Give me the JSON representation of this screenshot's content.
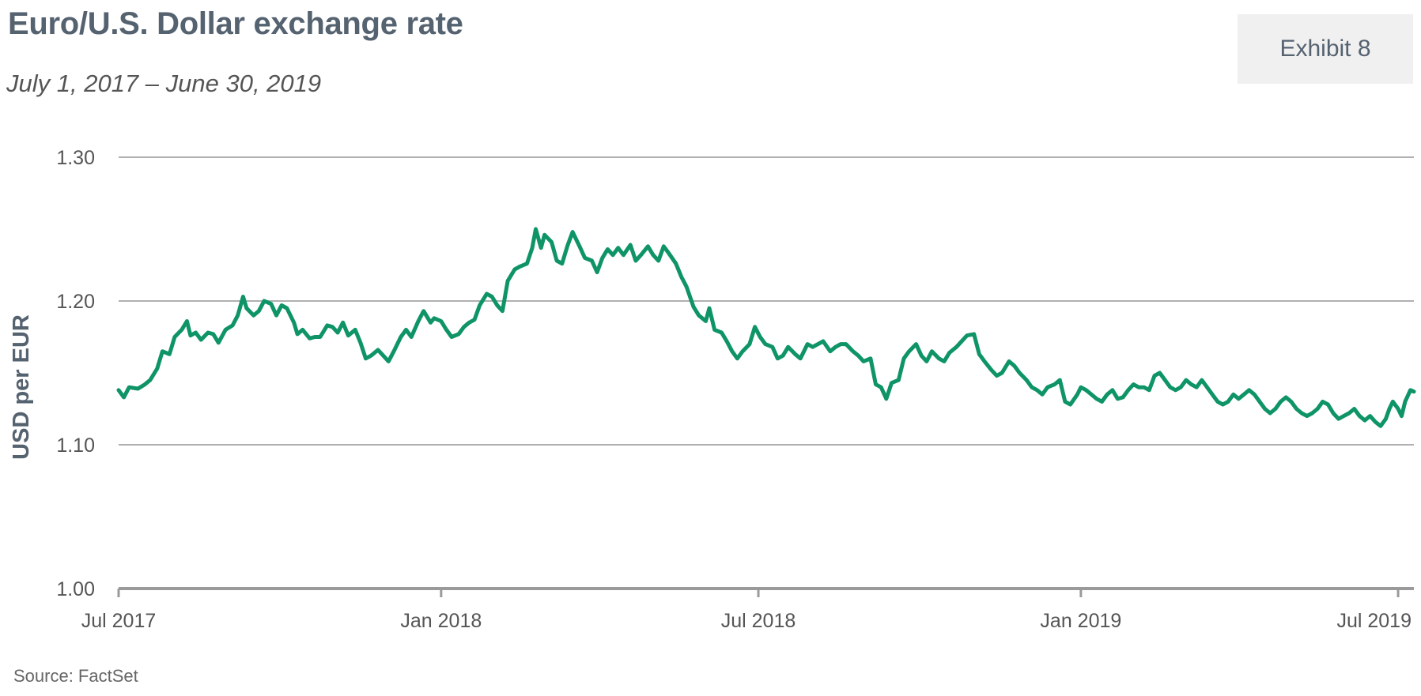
{
  "header": {
    "title": "Euro/U.S. Dollar exchange rate",
    "subtitle": "July 1, 2017 – June 30, 2019",
    "exhibit_label": "Exhibit 8"
  },
  "footer": {
    "source": "Source: FactSet"
  },
  "colors": {
    "line": "#0e9467",
    "grid": "#b0b0b0",
    "axis": "#9a9a9a",
    "title": "#556270",
    "exhibit_bg": "#f0f0f0"
  },
  "chart_data": {
    "type": "line",
    "title": "Euro/U.S. Dollar exchange rate",
    "subtitle": "July 1, 2017 – June 30, 2019",
    "xlabel": "",
    "ylabel": "USD per EUR",
    "xlim": [
      "2017-07-01",
      "2019-07-10"
    ],
    "ylim": [
      1.0,
      1.3
    ],
    "y_ticks": [
      1.0,
      1.1,
      1.2,
      1.3
    ],
    "y_tick_labels": [
      "1.00",
      "1.10",
      "1.20",
      "1.30"
    ],
    "x_ticks": [
      "2017-07-01",
      "2018-01-01",
      "2018-07-01",
      "2019-01-01",
      "2019-07-01"
    ],
    "x_tick_labels": [
      "Jul 2017",
      "Jan 2018",
      "Jul 2018",
      "Jan 2019",
      "Jul 2019"
    ],
    "grid": true,
    "legend": "none",
    "series": [
      {
        "points": [
          [
            "2017-07-01",
            1.138
          ],
          [
            "2017-07-04",
            1.133
          ],
          [
            "2017-07-07",
            1.14
          ],
          [
            "2017-07-12",
            1.139
          ],
          [
            "2017-07-16",
            1.142
          ],
          [
            "2017-07-19",
            1.145
          ],
          [
            "2017-07-23",
            1.153
          ],
          [
            "2017-07-26",
            1.165
          ],
          [
            "2017-07-30",
            1.163
          ],
          [
            "2017-08-02",
            1.175
          ],
          [
            "2017-08-06",
            1.18
          ],
          [
            "2017-08-09",
            1.186
          ],
          [
            "2017-08-11",
            1.176
          ],
          [
            "2017-08-14",
            1.178
          ],
          [
            "2017-08-17",
            1.173
          ],
          [
            "2017-08-21",
            1.178
          ],
          [
            "2017-08-24",
            1.177
          ],
          [
            "2017-08-27",
            1.171
          ],
          [
            "2017-08-31",
            1.18
          ],
          [
            "2017-09-04",
            1.183
          ],
          [
            "2017-09-07",
            1.19
          ],
          [
            "2017-09-10",
            1.203
          ],
          [
            "2017-09-12",
            1.195
          ],
          [
            "2017-09-16",
            1.19
          ],
          [
            "2017-09-19",
            1.193
          ],
          [
            "2017-09-22",
            1.2
          ],
          [
            "2017-09-26",
            1.198
          ],
          [
            "2017-09-29",
            1.19
          ],
          [
            "2017-10-02",
            1.197
          ],
          [
            "2017-10-05",
            1.195
          ],
          [
            "2017-10-09",
            1.185
          ],
          [
            "2017-10-11",
            1.177
          ],
          [
            "2017-10-14",
            1.18
          ],
          [
            "2017-10-18",
            1.174
          ],
          [
            "2017-10-21",
            1.175
          ],
          [
            "2017-10-24",
            1.175
          ],
          [
            "2017-10-28",
            1.183
          ],
          [
            "2017-10-31",
            1.182
          ],
          [
            "2017-11-03",
            1.178
          ],
          [
            "2017-11-06",
            1.185
          ],
          [
            "2017-11-09",
            1.176
          ],
          [
            "2017-11-13",
            1.18
          ],
          [
            "2017-11-16",
            1.171
          ],
          [
            "2017-11-19",
            1.16
          ],
          [
            "2017-11-22",
            1.162
          ],
          [
            "2017-11-26",
            1.166
          ],
          [
            "2017-11-29",
            1.162
          ],
          [
            "2017-12-02",
            1.158
          ],
          [
            "2017-12-05",
            1.165
          ],
          [
            "2017-12-09",
            1.175
          ],
          [
            "2017-12-12",
            1.18
          ],
          [
            "2017-12-15",
            1.175
          ],
          [
            "2017-12-19",
            1.186
          ],
          [
            "2017-12-22",
            1.193
          ],
          [
            "2017-12-26",
            1.185
          ],
          [
            "2017-12-28",
            1.188
          ],
          [
            "2018-01-01",
            1.186
          ],
          [
            "2018-01-04",
            1.18
          ],
          [
            "2018-01-07",
            1.175
          ],
          [
            "2018-01-11",
            1.177
          ],
          [
            "2018-01-14",
            1.182
          ],
          [
            "2018-01-17",
            1.185
          ],
          [
            "2018-01-20",
            1.187
          ],
          [
            "2018-01-23",
            1.197
          ],
          [
            "2018-01-27",
            1.205
          ],
          [
            "2018-01-30",
            1.203
          ],
          [
            "2018-02-02",
            1.197
          ],
          [
            "2018-02-05",
            1.193
          ],
          [
            "2018-02-08",
            1.214
          ],
          [
            "2018-02-12",
            1.222
          ],
          [
            "2018-02-15",
            1.224
          ],
          [
            "2018-02-19",
            1.226
          ],
          [
            "2018-02-22",
            1.237
          ],
          [
            "2018-02-24",
            1.25
          ],
          [
            "2018-02-27",
            1.237
          ],
          [
            "2018-03-01",
            1.246
          ],
          [
            "2018-03-05",
            1.241
          ],
          [
            "2018-03-08",
            1.228
          ],
          [
            "2018-03-11",
            1.226
          ],
          [
            "2018-03-14",
            1.238
          ],
          [
            "2018-03-17",
            1.248
          ],
          [
            "2018-03-21",
            1.238
          ],
          [
            "2018-03-24",
            1.23
          ],
          [
            "2018-03-28",
            1.228
          ],
          [
            "2018-03-31",
            1.22
          ],
          [
            "2018-04-03",
            1.23
          ],
          [
            "2018-04-06",
            1.236
          ],
          [
            "2018-04-09",
            1.232
          ],
          [
            "2018-04-12",
            1.237
          ],
          [
            "2018-04-15",
            1.232
          ],
          [
            "2018-04-19",
            1.239
          ],
          [
            "2018-04-22",
            1.228
          ],
          [
            "2018-04-25",
            1.232
          ],
          [
            "2018-04-29",
            1.238
          ],
          [
            "2018-05-02",
            1.232
          ],
          [
            "2018-05-05",
            1.228
          ],
          [
            "2018-05-08",
            1.238
          ],
          [
            "2018-05-11",
            1.233
          ],
          [
            "2018-05-15",
            1.226
          ],
          [
            "2018-05-18",
            1.217
          ],
          [
            "2018-05-21",
            1.21
          ],
          [
            "2018-05-25",
            1.196
          ],
          [
            "2018-05-28",
            1.19
          ],
          [
            "2018-06-01",
            1.186
          ],
          [
            "2018-06-03",
            1.195
          ],
          [
            "2018-06-06",
            1.18
          ],
          [
            "2018-06-10",
            1.178
          ],
          [
            "2018-06-13",
            1.172
          ],
          [
            "2018-06-16",
            1.165
          ],
          [
            "2018-06-19",
            1.16
          ],
          [
            "2018-06-22",
            1.165
          ],
          [
            "2018-06-26",
            1.17
          ],
          [
            "2018-06-29",
            1.182
          ],
          [
            "2018-07-02",
            1.175
          ],
          [
            "2018-07-05",
            1.17
          ],
          [
            "2018-07-09",
            1.168
          ],
          [
            "2018-07-12",
            1.16
          ],
          [
            "2018-07-15",
            1.162
          ],
          [
            "2018-07-18",
            1.168
          ],
          [
            "2018-07-22",
            1.163
          ],
          [
            "2018-07-25",
            1.16
          ],
          [
            "2018-07-29",
            1.17
          ],
          [
            "2018-08-01",
            1.168
          ],
          [
            "2018-08-04",
            1.17
          ],
          [
            "2018-08-07",
            1.172
          ],
          [
            "2018-08-11",
            1.165
          ],
          [
            "2018-08-14",
            1.168
          ],
          [
            "2018-08-17",
            1.17
          ],
          [
            "2018-08-20",
            1.17
          ],
          [
            "2018-08-24",
            1.165
          ],
          [
            "2018-08-27",
            1.162
          ],
          [
            "2018-08-30",
            1.158
          ],
          [
            "2018-09-03",
            1.16
          ],
          [
            "2018-09-06",
            1.142
          ],
          [
            "2018-09-09",
            1.14
          ],
          [
            "2018-09-12",
            1.132
          ],
          [
            "2018-09-15",
            1.143
          ],
          [
            "2018-09-19",
            1.145
          ],
          [
            "2018-09-22",
            1.16
          ],
          [
            "2018-09-25",
            1.165
          ],
          [
            "2018-09-29",
            1.17
          ],
          [
            "2018-10-02",
            1.162
          ],
          [
            "2018-10-05",
            1.158
          ],
          [
            "2018-10-08",
            1.165
          ],
          [
            "2018-10-12",
            1.16
          ],
          [
            "2018-10-15",
            1.158
          ],
          [
            "2018-10-18",
            1.164
          ],
          [
            "2018-10-22",
            1.168
          ],
          [
            "2018-10-25",
            1.172
          ],
          [
            "2018-10-28",
            1.176
          ],
          [
            "2018-11-01",
            1.177
          ],
          [
            "2018-11-04",
            1.163
          ],
          [
            "2018-11-07",
            1.158
          ],
          [
            "2018-11-11",
            1.152
          ],
          [
            "2018-11-14",
            1.148
          ],
          [
            "2018-11-17",
            1.15
          ],
          [
            "2018-11-21",
            1.158
          ],
          [
            "2018-11-24",
            1.155
          ],
          [
            "2018-11-27",
            1.15
          ],
          [
            "2018-12-01",
            1.145
          ],
          [
            "2018-12-04",
            1.14
          ],
          [
            "2018-12-07",
            1.138
          ],
          [
            "2018-12-10",
            1.135
          ],
          [
            "2018-12-13",
            1.14
          ],
          [
            "2018-12-17",
            1.142
          ],
          [
            "2018-12-20",
            1.145
          ],
          [
            "2018-12-23",
            1.13
          ],
          [
            "2018-12-26",
            1.128
          ],
          [
            "2018-12-30",
            1.135
          ],
          [
            "2019-01-01",
            1.14
          ],
          [
            "2019-01-04",
            1.138
          ],
          [
            "2019-01-07",
            1.135
          ],
          [
            "2019-01-10",
            1.132
          ],
          [
            "2019-01-13",
            1.13
          ],
          [
            "2019-01-16",
            1.135
          ],
          [
            "2019-01-19",
            1.138
          ],
          [
            "2019-01-22",
            1.132
          ],
          [
            "2019-01-25",
            1.133
          ],
          [
            "2019-01-28",
            1.138
          ],
          [
            "2019-01-31",
            1.142
          ],
          [
            "2019-02-03",
            1.14
          ],
          [
            "2019-02-06",
            1.14
          ],
          [
            "2019-02-09",
            1.138
          ],
          [
            "2019-02-12",
            1.148
          ],
          [
            "2019-02-15",
            1.15
          ],
          [
            "2019-02-18",
            1.145
          ],
          [
            "2019-02-21",
            1.14
          ],
          [
            "2019-02-24",
            1.138
          ],
          [
            "2019-02-27",
            1.14
          ],
          [
            "2019-03-02",
            1.145
          ],
          [
            "2019-03-05",
            1.142
          ],
          [
            "2019-03-08",
            1.14
          ],
          [
            "2019-03-11",
            1.145
          ],
          [
            "2019-03-14",
            1.14
          ],
          [
            "2019-03-17",
            1.135
          ],
          [
            "2019-03-20",
            1.13
          ],
          [
            "2019-03-23",
            1.128
          ],
          [
            "2019-03-26",
            1.13
          ],
          [
            "2019-03-29",
            1.135
          ],
          [
            "2019-04-01",
            1.132
          ],
          [
            "2019-04-04",
            1.135
          ],
          [
            "2019-04-07",
            1.138
          ],
          [
            "2019-04-10",
            1.135
          ],
          [
            "2019-04-13",
            1.13
          ],
          [
            "2019-04-16",
            1.125
          ],
          [
            "2019-04-19",
            1.122
          ],
          [
            "2019-04-22",
            1.125
          ],
          [
            "2019-04-25",
            1.13
          ],
          [
            "2019-04-28",
            1.133
          ],
          [
            "2019-05-01",
            1.13
          ],
          [
            "2019-05-04",
            1.125
          ],
          [
            "2019-05-07",
            1.122
          ],
          [
            "2019-05-10",
            1.12
          ],
          [
            "2019-05-13",
            1.122
          ],
          [
            "2019-05-16",
            1.125
          ],
          [
            "2019-05-19",
            1.13
          ],
          [
            "2019-05-22",
            1.128
          ],
          [
            "2019-05-25",
            1.122
          ],
          [
            "2019-05-28",
            1.118
          ],
          [
            "2019-05-31",
            1.12
          ],
          [
            "2019-06-03",
            1.122
          ],
          [
            "2019-06-06",
            1.125
          ],
          [
            "2019-06-09",
            1.12
          ],
          [
            "2019-06-12",
            1.117
          ],
          [
            "2019-06-15",
            1.12
          ],
          [
            "2019-06-18",
            1.116
          ],
          [
            "2019-06-21",
            1.113
          ],
          [
            "2019-06-24",
            1.118
          ],
          [
            "2019-06-26",
            1.125
          ],
          [
            "2019-06-28",
            1.13
          ],
          [
            "2019-07-01",
            1.125
          ],
          [
            "2019-07-03",
            1.12
          ],
          [
            "2019-07-05",
            1.13
          ],
          [
            "2019-07-08",
            1.138
          ],
          [
            "2019-07-10",
            1.137
          ]
        ]
      }
    ]
  }
}
